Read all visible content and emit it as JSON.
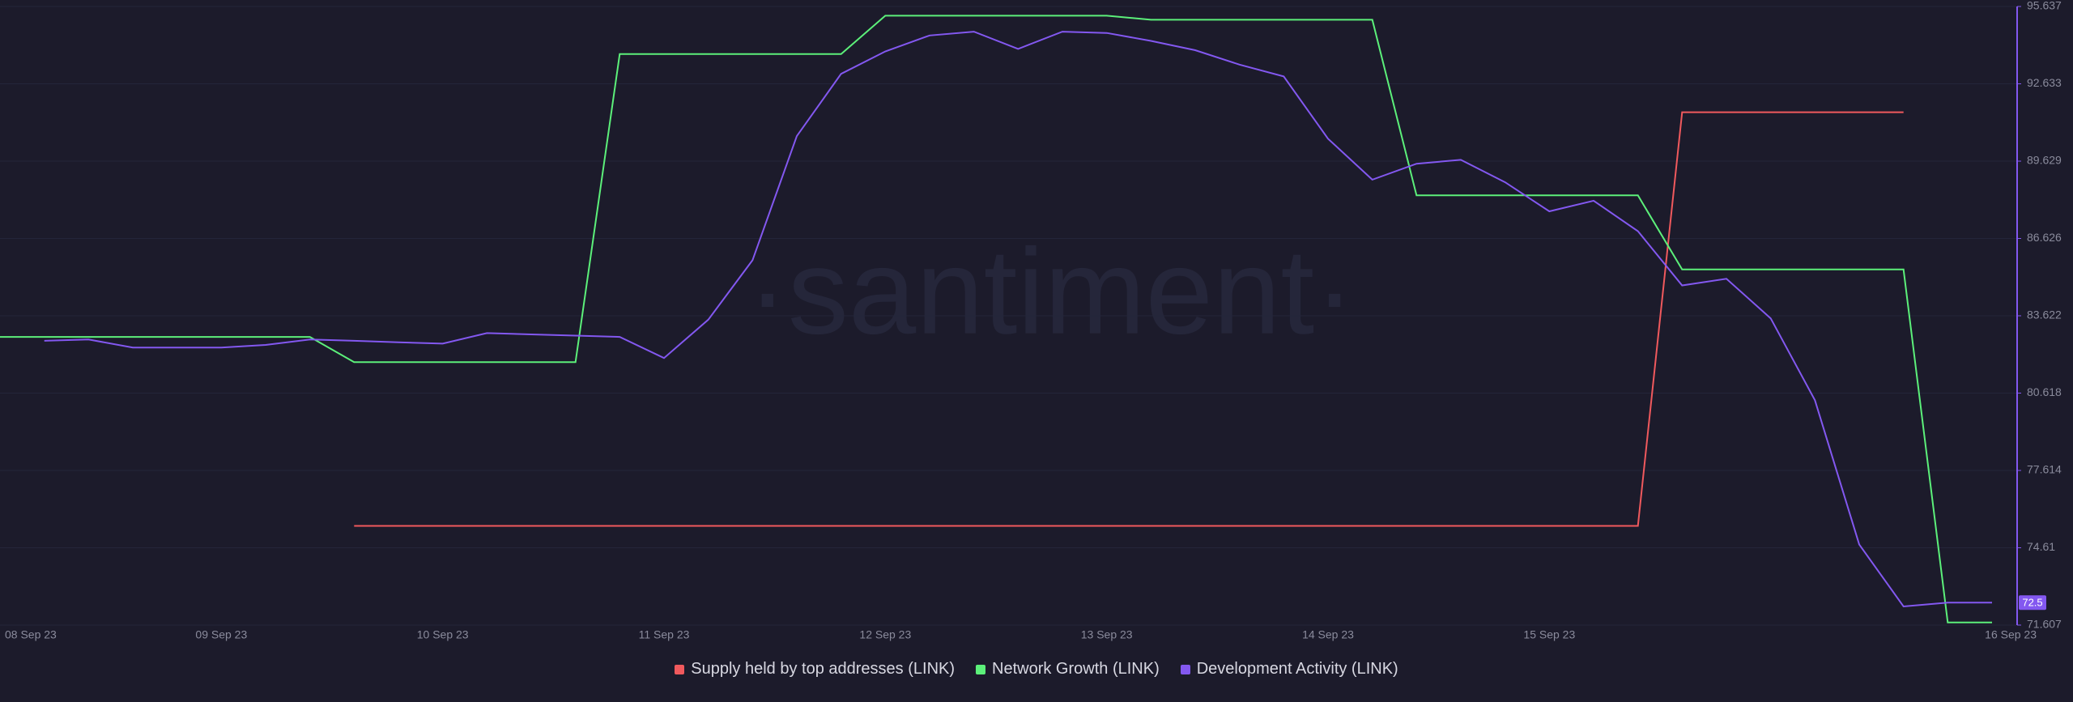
{
  "chart_data": {
    "type": "line",
    "watermark": "·santiment·",
    "categories": [
      "08 Sep 23",
      null,
      null,
      null,
      null,
      "09 Sep 23",
      null,
      null,
      null,
      null,
      "10 Sep 23",
      null,
      null,
      null,
      null,
      "11 Sep 23",
      null,
      null,
      null,
      null,
      "12 Sep 23",
      null,
      null,
      null,
      null,
      "13 Sep 23",
      null,
      null,
      null,
      null,
      "14 Sep 23",
      null,
      null,
      null,
      null,
      "15 Sep 23",
      null,
      null,
      null,
      null,
      "16 Sep 23",
      null,
      null,
      null,
      null,
      null
    ],
    "series": [
      {
        "name": "Supply held by top addresses (LINK)",
        "color": "#f0595d",
        "values": [
          null,
          null,
          null,
          null,
          null,
          null,
          null,
          null,
          75.46,
          75.46,
          75.46,
          75.46,
          75.46,
          75.46,
          75.46,
          75.46,
          75.46,
          75.46,
          75.46,
          75.46,
          75.46,
          75.46,
          75.46,
          75.46,
          75.46,
          75.46,
          75.46,
          75.46,
          75.46,
          75.46,
          75.46,
          75.46,
          75.46,
          75.46,
          75.46,
          75.46,
          75.46,
          75.46,
          91.53,
          91.53,
          91.53,
          91.53,
          91.53,
          91.53,
          null,
          null
        ]
      },
      {
        "name": "Network Growth (LINK)",
        "color": "#5cf07a",
        "values": [
          82.8,
          82.8,
          82.8,
          82.8,
          82.8,
          82.8,
          82.8,
          82.8,
          81.82,
          81.82,
          81.82,
          81.82,
          81.82,
          81.82,
          93.79,
          93.79,
          93.79,
          93.79,
          93.79,
          93.79,
          95.28,
          95.28,
          95.28,
          95.28,
          95.28,
          95.28,
          95.12,
          95.12,
          95.12,
          95.12,
          95.12,
          95.12,
          88.3,
          88.3,
          88.3,
          88.3,
          88.3,
          88.3,
          85.42,
          85.42,
          85.42,
          85.42,
          85.42,
          85.42,
          71.71,
          71.71
        ]
      },
      {
        "name": "Development Activity (LINK)",
        "color": "#8358f0",
        "values": [
          null,
          82.65,
          82.7,
          82.39,
          82.39,
          82.39,
          82.49,
          82.7,
          82.65,
          82.59,
          82.54,
          82.95,
          82.9,
          82.85,
          82.8,
          81.98,
          83.47,
          85.78,
          90.6,
          93.02,
          93.89,
          94.51,
          94.66,
          93.99,
          94.66,
          94.61,
          94.3,
          93.94,
          93.38,
          92.92,
          90.5,
          88.91,
          89.53,
          89.68,
          88.81,
          87.68,
          88.09,
          86.91,
          84.8,
          85.06,
          83.52,
          80.34,
          74.74,
          72.33,
          72.48,
          72.48
        ],
        "value_labels": [
          null,
          null,
          null,
          null,
          null,
          null,
          null,
          null,
          null,
          null,
          null,
          null,
          null,
          null,
          null,
          null,
          null,
          null,
          null,
          null,
          null,
          null,
          null,
          null,
          null,
          null,
          null,
          null,
          null,
          null,
          null,
          null,
          null,
          null,
          null,
          null,
          null,
          null,
          null,
          null,
          null,
          null,
          null,
          null,
          null,
          "72.5"
        ]
      }
    ],
    "ylim": [
      71.607,
      95.637
    ],
    "yticks": [
      71.607,
      74.61,
      77.614,
      80.618,
      83.622,
      86.626,
      89.629,
      92.633,
      95.637
    ],
    "grid": true,
    "legend": "bottom"
  }
}
